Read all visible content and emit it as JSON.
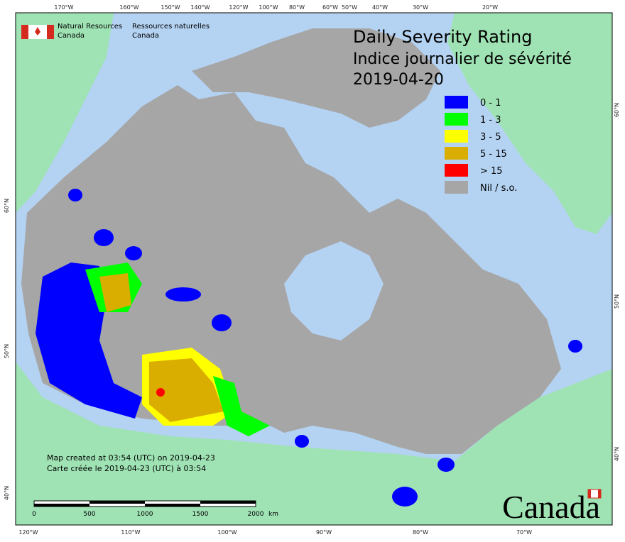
{
  "header": {
    "org_en_1": "Natural Resources",
    "org_en_2": "Canada",
    "org_fr_1": "Ressources naturelles",
    "org_fr_2": "Canada"
  },
  "title": {
    "line1": "Daily Severity Rating",
    "line2": "Indice journalier de sévérité",
    "date": "2019-04-20"
  },
  "legend": [
    {
      "label": "0 - 1",
      "color": "#0000ff"
    },
    {
      "label": "1 - 3",
      "color": "#00ff00"
    },
    {
      "label": "3 - 5",
      "color": "#ffff00"
    },
    {
      "label": "5 - 15",
      "color": "#d9ae00"
    },
    {
      "label": "> 15",
      "color": "#ff0000"
    },
    {
      "label": "Nil / s.o.",
      "color": "#a6a6a6"
    }
  ],
  "graticule": {
    "top": [
      "170°W",
      "160°W",
      "150°W",
      "140°W",
      "120°W",
      "100°W",
      "80°W",
      "60°W",
      "50°W",
      "40°W",
      "30°W",
      "20°W"
    ],
    "bottom": [
      "120°W",
      "110°W",
      "100°W",
      "90°W",
      "80°W",
      "70°W"
    ],
    "left": [
      "60°N",
      "50°N",
      "40°N"
    ],
    "right": [
      "60°N",
      "50°N",
      "40°N"
    ]
  },
  "footer": {
    "created_en": "Map created at 03:54 (UTC) on 2019-04-23",
    "created_fr": "Carte créée le 2019-04-23 (UTC) à 03:54"
  },
  "scale": {
    "labels": [
      "0",
      "500",
      "1000",
      "1500",
      "2000"
    ],
    "unit": "km"
  },
  "wordmark": "Canada"
}
